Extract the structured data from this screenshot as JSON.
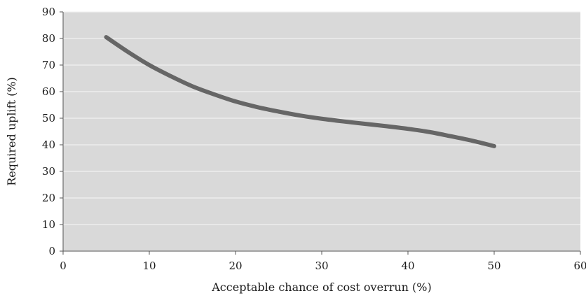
{
  "chart_data": {
    "type": "line",
    "title": "",
    "xlabel": "Acceptable chance of cost overrun (%)",
    "ylabel": "Required uplift (%)",
    "xlim": [
      0,
      60
    ],
    "ylim": [
      0,
      90
    ],
    "xticks": [
      "0",
      "10",
      "20",
      "30",
      "40",
      "50",
      "60"
    ],
    "yticks": [
      "0",
      "10",
      "20",
      "30",
      "40",
      "50",
      "60",
      "70",
      "80",
      "90"
    ],
    "grid": true,
    "legend": "none",
    "series": [
      {
        "x": [
          5,
          7.5,
          10,
          12.5,
          15,
          17.5,
          20,
          22.5,
          25,
          27.5,
          30,
          32.5,
          35,
          37.5,
          40,
          42.5,
          45,
          47.5,
          50
        ],
        "y": [
          80.5,
          75,
          70,
          65.8,
          62,
          59,
          56.3,
          54.2,
          52.5,
          51,
          49.8,
          48.8,
          47.9,
          47,
          46,
          44.8,
          43.2,
          41.5,
          39.5
        ],
        "color": "#666666"
      }
    ],
    "colors": {
      "plot_background": "#d9d9d9",
      "gridline": "#f2f2f2",
      "axis": "#555555",
      "line": "#666666"
    }
  }
}
